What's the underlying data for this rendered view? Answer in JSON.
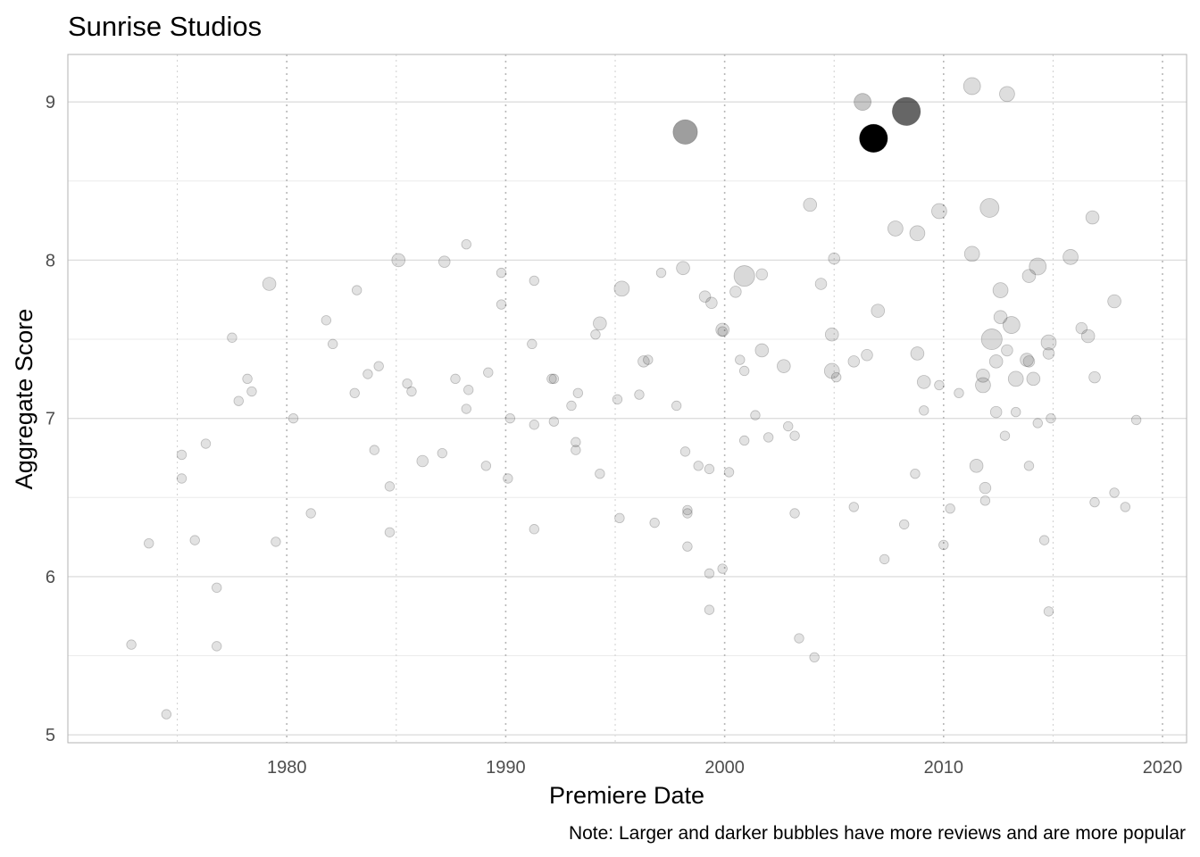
{
  "chart_data": {
    "type": "scatter",
    "title": "Sunrise Studios",
    "xlabel": "Premiere Date",
    "ylabel": "Aggregate Score",
    "caption": "Note: Larger and darker bubbles have more reviews and are more popular",
    "x_ticks": [
      "1980",
      "1990",
      "2000",
      "2010",
      "2020"
    ],
    "y_ticks": [
      "5",
      "6",
      "7",
      "8",
      "9"
    ],
    "xlim": [
      1970.0,
      2021.1
    ],
    "ylim": [
      4.95,
      9.3
    ],
    "grid": true,
    "bubble_color": "#000000",
    "points": [
      {
        "x": 1972.9,
        "y": 5.57,
        "r": 1
      },
      {
        "x": 1973.7,
        "y": 6.21,
        "r": 1
      },
      {
        "x": 1974.5,
        "y": 5.13,
        "r": 1
      },
      {
        "x": 1975.2,
        "y": 6.77,
        "r": 1
      },
      {
        "x": 1975.2,
        "y": 6.62,
        "r": 1
      },
      {
        "x": 1975.8,
        "y": 6.23,
        "r": 1
      },
      {
        "x": 1976.3,
        "y": 6.84,
        "r": 1
      },
      {
        "x": 1976.8,
        "y": 5.93,
        "r": 1
      },
      {
        "x": 1976.8,
        "y": 5.56,
        "r": 1
      },
      {
        "x": 1977.5,
        "y": 7.51,
        "r": 1
      },
      {
        "x": 1977.8,
        "y": 7.11,
        "r": 1
      },
      {
        "x": 1978.2,
        "y": 7.25,
        "r": 1
      },
      {
        "x": 1978.4,
        "y": 7.17,
        "r": 1
      },
      {
        "x": 1979.2,
        "y": 7.85,
        "r": 2
      },
      {
        "x": 1979.5,
        "y": 6.22,
        "r": 1
      },
      {
        "x": 1980.3,
        "y": 7.0,
        "r": 1
      },
      {
        "x": 1981.1,
        "y": 6.4,
        "r": 1
      },
      {
        "x": 1981.8,
        "y": 7.62,
        "r": 1
      },
      {
        "x": 1982.1,
        "y": 7.47,
        "r": 1
      },
      {
        "x": 1983.1,
        "y": 7.16,
        "r": 1
      },
      {
        "x": 1983.2,
        "y": 7.81,
        "r": 1
      },
      {
        "x": 1983.7,
        "y": 7.28,
        "r": 1
      },
      {
        "x": 1984.0,
        "y": 6.8,
        "r": 1
      },
      {
        "x": 1984.2,
        "y": 7.33,
        "r": 1
      },
      {
        "x": 1984.7,
        "y": 6.57,
        "r": 1
      },
      {
        "x": 1984.7,
        "y": 6.28,
        "r": 1
      },
      {
        "x": 1985.1,
        "y": 8.0,
        "r": 2
      },
      {
        "x": 1985.5,
        "y": 7.22,
        "r": 1
      },
      {
        "x": 1985.7,
        "y": 7.17,
        "r": 1
      },
      {
        "x": 1986.2,
        "y": 6.73,
        "r": 1.5
      },
      {
        "x": 1987.1,
        "y": 6.78,
        "r": 1
      },
      {
        "x": 1987.2,
        "y": 7.99,
        "r": 1.5
      },
      {
        "x": 1987.7,
        "y": 7.25,
        "r": 1
      },
      {
        "x": 1988.2,
        "y": 8.1,
        "r": 1
      },
      {
        "x": 1988.2,
        "y": 7.06,
        "r": 1
      },
      {
        "x": 1988.3,
        "y": 7.18,
        "r": 1
      },
      {
        "x": 1989.1,
        "y": 6.7,
        "r": 1
      },
      {
        "x": 1989.2,
        "y": 7.29,
        "r": 1
      },
      {
        "x": 1989.8,
        "y": 7.92,
        "r": 1
      },
      {
        "x": 1989.8,
        "y": 7.72,
        "r": 1
      },
      {
        "x": 1990.1,
        "y": 6.62,
        "r": 1
      },
      {
        "x": 1990.2,
        "y": 7.0,
        "r": 1
      },
      {
        "x": 1991.2,
        "y": 7.47,
        "r": 1
      },
      {
        "x": 1991.3,
        "y": 6.96,
        "r": 1
      },
      {
        "x": 1991.3,
        "y": 6.3,
        "r": 1
      },
      {
        "x": 1991.3,
        "y": 7.87,
        "r": 1
      },
      {
        "x": 1992.1,
        "y": 7.25,
        "r": 1
      },
      {
        "x": 1992.2,
        "y": 7.25,
        "r": 1
      },
      {
        "x": 1992.2,
        "y": 6.98,
        "r": 1
      },
      {
        "x": 1993.0,
        "y": 7.08,
        "r": 1
      },
      {
        "x": 1993.2,
        "y": 6.8,
        "r": 1
      },
      {
        "x": 1993.2,
        "y": 6.85,
        "r": 1
      },
      {
        "x": 1993.3,
        "y": 7.16,
        "r": 1
      },
      {
        "x": 1994.1,
        "y": 7.53,
        "r": 1
      },
      {
        "x": 1994.3,
        "y": 7.6,
        "r": 2
      },
      {
        "x": 1994.3,
        "y": 6.65,
        "r": 1
      },
      {
        "x": 1995.1,
        "y": 7.12,
        "r": 1
      },
      {
        "x": 1995.2,
        "y": 6.37,
        "r": 1
      },
      {
        "x": 1995.3,
        "y": 7.82,
        "r": 2.5
      },
      {
        "x": 1996.1,
        "y": 7.15,
        "r": 1
      },
      {
        "x": 1996.3,
        "y": 7.36,
        "r": 1.5
      },
      {
        "x": 1996.5,
        "y": 7.37,
        "r": 1
      },
      {
        "x": 1996.8,
        "y": 6.34,
        "r": 1
      },
      {
        "x": 1997.1,
        "y": 7.92,
        "r": 1
      },
      {
        "x": 1997.8,
        "y": 7.08,
        "r": 1
      },
      {
        "x": 1998.1,
        "y": 7.95,
        "r": 2
      },
      {
        "x": 1998.2,
        "y": 8.81,
        "r": 5,
        "dark": 0.38
      },
      {
        "x": 1998.2,
        "y": 6.79,
        "r": 1
      },
      {
        "x": 1998.3,
        "y": 6.42,
        "r": 1
      },
      {
        "x": 1998.3,
        "y": 6.4,
        "r": 1
      },
      {
        "x": 1998.3,
        "y": 6.19,
        "r": 1
      },
      {
        "x": 1998.8,
        "y": 6.7,
        "r": 1
      },
      {
        "x": 1999.1,
        "y": 7.77,
        "r": 1.5
      },
      {
        "x": 1999.3,
        "y": 6.02,
        "r": 1
      },
      {
        "x": 1999.3,
        "y": 5.79,
        "r": 1
      },
      {
        "x": 1999.3,
        "y": 6.68,
        "r": 1
      },
      {
        "x": 1999.4,
        "y": 7.73,
        "r": 1.5
      },
      {
        "x": 1999.9,
        "y": 7.56,
        "r": 2
      },
      {
        "x": 1999.9,
        "y": 7.55,
        "r": 1
      },
      {
        "x": 1999.9,
        "y": 6.05,
        "r": 1
      },
      {
        "x": 2000.2,
        "y": 6.66,
        "r": 1
      },
      {
        "x": 2000.5,
        "y": 7.8,
        "r": 1.5
      },
      {
        "x": 2000.7,
        "y": 7.37,
        "r": 1
      },
      {
        "x": 2000.9,
        "y": 7.9,
        "r": 4
      },
      {
        "x": 2000.9,
        "y": 7.3,
        "r": 1
      },
      {
        "x": 2000.9,
        "y": 6.86,
        "r": 1
      },
      {
        "x": 2001.4,
        "y": 7.02,
        "r": 1
      },
      {
        "x": 2001.7,
        "y": 7.43,
        "r": 2
      },
      {
        "x": 2001.7,
        "y": 7.91,
        "r": 1.5
      },
      {
        "x": 2002.0,
        "y": 6.88,
        "r": 1
      },
      {
        "x": 2002.7,
        "y": 7.33,
        "r": 2
      },
      {
        "x": 2002.9,
        "y": 6.95,
        "r": 1
      },
      {
        "x": 2003.2,
        "y": 6.89,
        "r": 1
      },
      {
        "x": 2003.2,
        "y": 6.4,
        "r": 1
      },
      {
        "x": 2003.4,
        "y": 5.61,
        "r": 1
      },
      {
        "x": 2003.9,
        "y": 8.35,
        "r": 2
      },
      {
        "x": 2004.1,
        "y": 5.49,
        "r": 1
      },
      {
        "x": 2004.4,
        "y": 7.85,
        "r": 1.5
      },
      {
        "x": 2004.9,
        "y": 7.53,
        "r": 2
      },
      {
        "x": 2004.9,
        "y": 7.3,
        "r": 2.5
      },
      {
        "x": 2005.0,
        "y": 8.01,
        "r": 1.5
      },
      {
        "x": 2005.1,
        "y": 7.26,
        "r": 1
      },
      {
        "x": 2005.9,
        "y": 7.36,
        "r": 1.5
      },
      {
        "x": 2005.9,
        "y": 6.44,
        "r": 1
      },
      {
        "x": 2006.3,
        "y": 9.0,
        "r": 3,
        "dark": 0.22
      },
      {
        "x": 2006.5,
        "y": 7.4,
        "r": 1.5
      },
      {
        "x": 2006.8,
        "y": 8.77,
        "r": 6,
        "dark": 1.0
      },
      {
        "x": 2007.0,
        "y": 7.68,
        "r": 2
      },
      {
        "x": 2007.3,
        "y": 6.11,
        "r": 1
      },
      {
        "x": 2007.8,
        "y": 8.2,
        "r": 2.5
      },
      {
        "x": 2008.2,
        "y": 6.33,
        "r": 1
      },
      {
        "x": 2008.3,
        "y": 8.94,
        "r": 6,
        "dark": 0.6
      },
      {
        "x": 2008.7,
        "y": 6.65,
        "r": 1
      },
      {
        "x": 2008.8,
        "y": 7.41,
        "r": 2
      },
      {
        "x": 2008.8,
        "y": 8.17,
        "r": 2.5
      },
      {
        "x": 2009.1,
        "y": 7.23,
        "r": 2
      },
      {
        "x": 2009.1,
        "y": 7.05,
        "r": 1
      },
      {
        "x": 2009.8,
        "y": 7.21,
        "r": 1
      },
      {
        "x": 2009.8,
        "y": 8.31,
        "r": 2.5
      },
      {
        "x": 2010.0,
        "y": 6.2,
        "r": 1
      },
      {
        "x": 2010.3,
        "y": 6.43,
        "r": 1
      },
      {
        "x": 2010.7,
        "y": 7.16,
        "r": 1
      },
      {
        "x": 2011.3,
        "y": 9.1,
        "r": 3
      },
      {
        "x": 2011.3,
        "y": 8.04,
        "r": 2.5
      },
      {
        "x": 2011.5,
        "y": 6.7,
        "r": 2
      },
      {
        "x": 2011.8,
        "y": 7.27,
        "r": 2
      },
      {
        "x": 2011.8,
        "y": 7.21,
        "r": 2.5
      },
      {
        "x": 2011.9,
        "y": 6.56,
        "r": 1.5
      },
      {
        "x": 2011.9,
        "y": 6.48,
        "r": 1
      },
      {
        "x": 2012.1,
        "y": 8.33,
        "r": 3.5
      },
      {
        "x": 2012.2,
        "y": 7.5,
        "r": 4
      },
      {
        "x": 2012.4,
        "y": 7.36,
        "r": 2
      },
      {
        "x": 2012.4,
        "y": 7.04,
        "r": 1.5
      },
      {
        "x": 2012.6,
        "y": 7.81,
        "r": 2.5
      },
      {
        "x": 2012.6,
        "y": 7.64,
        "r": 2
      },
      {
        "x": 2012.8,
        "y": 6.89,
        "r": 1
      },
      {
        "x": 2012.9,
        "y": 7.43,
        "r": 1.5
      },
      {
        "x": 2012.9,
        "y": 9.05,
        "r": 2.5
      },
      {
        "x": 2013.1,
        "y": 7.59,
        "r": 3
      },
      {
        "x": 2013.3,
        "y": 7.25,
        "r": 2.5
      },
      {
        "x": 2013.3,
        "y": 7.04,
        "r": 1
      },
      {
        "x": 2013.8,
        "y": 7.37,
        "r": 2
      },
      {
        "x": 2013.9,
        "y": 7.36,
        "r": 1.5
      },
      {
        "x": 2013.9,
        "y": 6.7,
        "r": 1
      },
      {
        "x": 2013.9,
        "y": 7.9,
        "r": 2
      },
      {
        "x": 2014.1,
        "y": 7.25,
        "r": 2
      },
      {
        "x": 2014.3,
        "y": 6.97,
        "r": 1
      },
      {
        "x": 2014.3,
        "y": 7.96,
        "r": 3
      },
      {
        "x": 2014.6,
        "y": 6.23,
        "r": 1
      },
      {
        "x": 2014.8,
        "y": 7.48,
        "r": 2.5
      },
      {
        "x": 2014.8,
        "y": 7.41,
        "r": 1.5
      },
      {
        "x": 2014.8,
        "y": 5.78,
        "r": 1
      },
      {
        "x": 2014.9,
        "y": 7.0,
        "r": 1
      },
      {
        "x": 2015.8,
        "y": 8.02,
        "r": 2.5
      },
      {
        "x": 2016.3,
        "y": 7.57,
        "r": 1.5
      },
      {
        "x": 2016.6,
        "y": 7.52,
        "r": 2
      },
      {
        "x": 2016.9,
        "y": 6.47,
        "r": 1
      },
      {
        "x": 2016.9,
        "y": 7.26,
        "r": 1.5
      },
      {
        "x": 2016.8,
        "y": 8.27,
        "r": 2
      },
      {
        "x": 2017.8,
        "y": 7.74,
        "r": 2
      },
      {
        "x": 2017.8,
        "y": 6.53,
        "r": 1
      },
      {
        "x": 2018.3,
        "y": 6.44,
        "r": 1
      },
      {
        "x": 2018.8,
        "y": 6.99,
        "r": 1
      }
    ]
  }
}
